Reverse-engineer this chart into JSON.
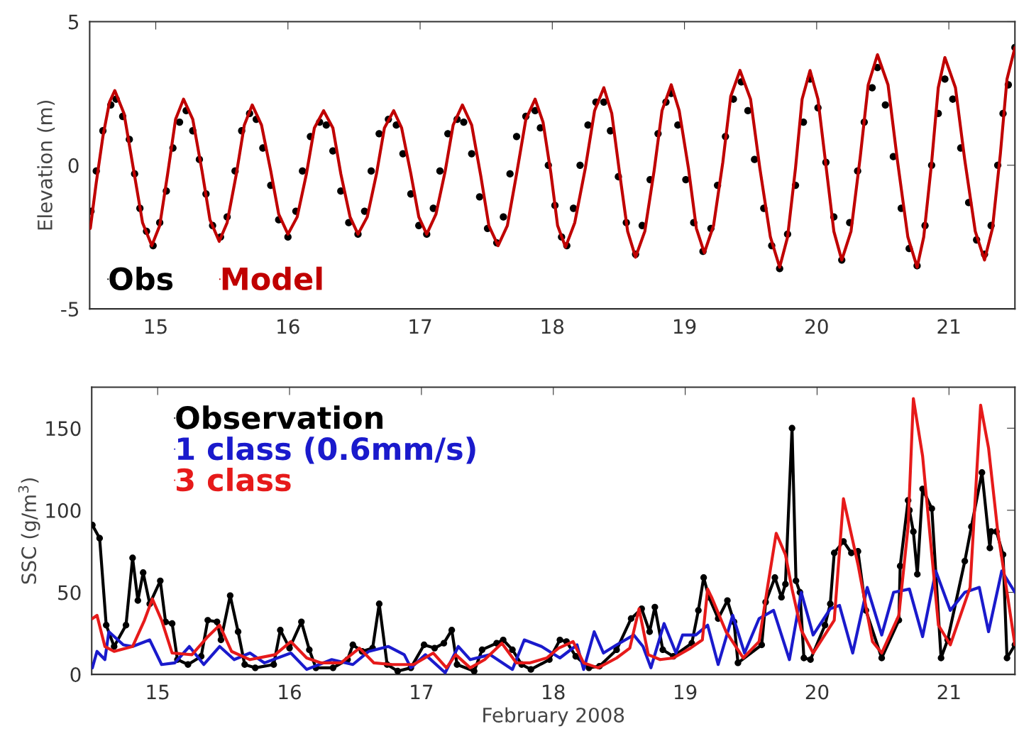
{
  "chart_data": [
    {
      "type": "line",
      "ylabel": "Elevation (m)",
      "xlim": [
        14.5,
        21.5
      ],
      "xticks": [
        15,
        16,
        17,
        18,
        19,
        20,
        21
      ],
      "ylim": [
        -5,
        5
      ],
      "yticks": [
        -5,
        0,
        5
      ],
      "grid": false,
      "legend": "bottom left",
      "series": [
        {
          "name": "Obs",
          "type": "scatter",
          "marker": "circle",
          "color": "#000000",
          "x": [
            14.51,
            14.55,
            14.6,
            14.66,
            14.7,
            14.75,
            14.8,
            14.84,
            14.88,
            14.93,
            14.98,
            15.03,
            15.08,
            15.13,
            15.18,
            15.23,
            15.28,
            15.33,
            15.38,
            15.43,
            15.49,
            15.54,
            15.6,
            15.65,
            15.71,
            15.76,
            15.81,
            15.87,
            15.93,
            16.0,
            16.06,
            16.11,
            16.17,
            16.24,
            16.29,
            16.34,
            16.4,
            16.46,
            16.53,
            16.58,
            16.63,
            16.69,
            16.76,
            16.82,
            16.87,
            16.93,
            16.99,
            17.05,
            17.1,
            17.15,
            17.21,
            17.28,
            17.33,
            17.39,
            17.45,
            17.51,
            17.58,
            17.63,
            17.68,
            17.73,
            17.8,
            17.87,
            17.91,
            17.97,
            18.02,
            18.07,
            18.11,
            18.16,
            18.21,
            18.27,
            18.33,
            18.39,
            18.44,
            18.5,
            18.56,
            18.63,
            18.68,
            18.74,
            18.8,
            18.86,
            18.9,
            18.95,
            19.01,
            19.07,
            19.14,
            19.2,
            19.25,
            19.31,
            19.37,
            19.43,
            19.48,
            19.53,
            19.6,
            19.66,
            19.72,
            19.78,
            19.84,
            19.9,
            19.95,
            20.01,
            20.07,
            20.13,
            20.19,
            20.25,
            20.31,
            20.36,
            20.42,
            20.46,
            20.52,
            20.58,
            20.64,
            20.7,
            20.76,
            20.82,
            20.87,
            20.92,
            20.97,
            21.03,
            21.09,
            21.15,
            21.21,
            21.27,
            21.32,
            21.37,
            21.41,
            21.45,
            21.5
          ],
          "values": [
            -1.6,
            -0.2,
            1.2,
            2.1,
            2.3,
            1.7,
            0.9,
            -0.3,
            -1.5,
            -2.3,
            -2.8,
            -2.0,
            -0.9,
            0.6,
            1.5,
            1.9,
            1.2,
            0.2,
            -1.0,
            -2.1,
            -2.5,
            -1.8,
            -0.2,
            1.2,
            1.8,
            1.6,
            0.6,
            -0.7,
            -1.9,
            -2.5,
            -1.6,
            -0.2,
            1.0,
            1.5,
            1.4,
            0.5,
            -0.9,
            -2.0,
            -2.4,
            -1.6,
            -0.2,
            1.1,
            1.6,
            1.4,
            0.4,
            -1.0,
            -2.1,
            -2.4,
            -1.5,
            -0.2,
            1.1,
            1.6,
            1.5,
            0.4,
            -1.1,
            -2.2,
            -2.7,
            -1.8,
            -0.3,
            1.0,
            1.7,
            1.9,
            1.3,
            0.0,
            -1.4,
            -2.5,
            -2.8,
            -1.5,
            0.0,
            1.4,
            2.2,
            2.2,
            1.2,
            -0.4,
            -2.0,
            -3.1,
            -2.1,
            -0.5,
            1.1,
            2.2,
            2.5,
            1.4,
            -0.5,
            -2.0,
            -3.0,
            -2.2,
            -0.7,
            1.0,
            2.3,
            2.9,
            1.9,
            0.2,
            -1.5,
            -2.8,
            -3.6,
            -2.4,
            -0.7,
            1.5,
            3.0,
            2.0,
            0.1,
            -1.8,
            -3.3,
            -2.0,
            -0.2,
            1.5,
            2.7,
            3.4,
            2.1,
            0.3,
            -1.5,
            -2.9,
            -3.5,
            -2.1,
            0.0,
            1.8,
            3.0,
            2.3,
            0.6,
            -1.3,
            -2.6,
            -3.1,
            -2.1,
            0.0,
            1.8,
            2.8,
            4.1
          ]
        },
        {
          "name": "Model",
          "color": "#c00000",
          "x": [
            14.505,
            14.55,
            14.6,
            14.65,
            14.69,
            14.76,
            14.83,
            14.9,
            14.97,
            15.03,
            15.09,
            15.15,
            15.21,
            15.28,
            15.35,
            15.41,
            15.48,
            15.54,
            15.61,
            15.67,
            15.73,
            15.8,
            15.87,
            15.93,
            16.0,
            16.07,
            16.14,
            16.2,
            16.27,
            16.34,
            16.4,
            16.47,
            16.53,
            16.6,
            16.67,
            16.73,
            16.8,
            16.86,
            16.93,
            16.99,
            17.05,
            17.12,
            17.19,
            17.25,
            17.32,
            17.39,
            17.46,
            17.52,
            17.59,
            17.66,
            17.73,
            17.8,
            17.87,
            17.93,
            17.99,
            18.04,
            18.1,
            18.17,
            18.25,
            18.32,
            18.39,
            18.45,
            18.51,
            18.57,
            18.63,
            18.7,
            18.77,
            18.83,
            18.9,
            18.96,
            19.03,
            19.09,
            19.15,
            19.22,
            19.29,
            19.35,
            19.42,
            19.5,
            19.57,
            19.65,
            19.72,
            19.78,
            19.84,
            19.89,
            19.95,
            20.01,
            20.07,
            20.13,
            20.19,
            20.26,
            20.33,
            20.39,
            20.46,
            20.54,
            20.61,
            20.69,
            20.76,
            20.81,
            20.87,
            20.92,
            20.97,
            21.05,
            21.12,
            21.2,
            21.27,
            21.33,
            21.39,
            21.44,
            21.5
          ],
          "values": [
            -2.2,
            -0.6,
            1.0,
            2.2,
            2.6,
            1.8,
            -0.1,
            -2.0,
            -2.8,
            -2.1,
            -0.3,
            1.6,
            2.3,
            1.6,
            -0.2,
            -1.9,
            -2.65,
            -2.0,
            -0.3,
            1.4,
            2.1,
            1.4,
            -0.2,
            -1.7,
            -2.4,
            -1.8,
            -0.3,
            1.3,
            1.9,
            1.3,
            -0.3,
            -1.8,
            -2.4,
            -1.8,
            -0.3,
            1.3,
            1.9,
            1.3,
            -0.3,
            -1.8,
            -2.4,
            -1.7,
            -0.2,
            1.4,
            2.1,
            1.4,
            -0.4,
            -2.1,
            -2.8,
            -2.1,
            -0.3,
            1.6,
            2.3,
            1.5,
            -0.3,
            -2.1,
            -2.85,
            -2.0,
            -0.1,
            1.9,
            2.7,
            1.8,
            -0.3,
            -2.3,
            -3.2,
            -2.3,
            -0.2,
            1.9,
            2.8,
            1.9,
            -0.1,
            -2.2,
            -3.05,
            -2.1,
            0.1,
            2.4,
            3.3,
            2.3,
            -0.1,
            -2.5,
            -3.55,
            -2.5,
            -0.1,
            2.3,
            3.3,
            2.3,
            0.0,
            -2.3,
            -3.3,
            -2.3,
            0.3,
            2.8,
            3.85,
            2.8,
            0.2,
            -2.5,
            -3.55,
            -2.5,
            0.1,
            2.7,
            3.75,
            2.7,
            0.2,
            -2.3,
            -3.3,
            -2.2,
            0.4,
            3.0,
            4.1
          ]
        }
      ]
    },
    {
      "type": "line",
      "ylabel": "SSC (g/m$^{3}$)",
      "xlabel": "February 2008",
      "xlim": [
        14.5,
        21.5
      ],
      "xticks": [
        15,
        16,
        17,
        18,
        19,
        20,
        21
      ],
      "ylim": [
        0,
        175
      ],
      "yticks": [
        0,
        50,
        100,
        150
      ],
      "grid": false,
      "legend": "top left",
      "series": [
        {
          "name": "Observation",
          "marker": "circle",
          "color": "#000000",
          "x": [
            14.505,
            14.56,
            14.61,
            14.67,
            14.76,
            14.81,
            14.85,
            14.89,
            14.94,
            15.02,
            15.06,
            15.11,
            15.15,
            15.23,
            15.33,
            15.38,
            15.45,
            15.48,
            15.55,
            15.61,
            15.66,
            15.74,
            15.88,
            15.93,
            16.0,
            16.09,
            16.15,
            16.2,
            16.33,
            16.44,
            16.48,
            16.55,
            16.63,
            16.68,
            16.74,
            16.82,
            16.92,
            17.02,
            17.1,
            17.17,
            17.23,
            17.27,
            17.4,
            17.46,
            17.57,
            17.62,
            17.69,
            17.76,
            17.83,
            17.97,
            18.05,
            18.1,
            18.17,
            18.27,
            18.35,
            18.48,
            18.59,
            18.67,
            18.73,
            18.77,
            18.83,
            18.91,
            19.05,
            19.1,
            19.14,
            19.18,
            19.25,
            19.32,
            19.37,
            19.4,
            19.58,
            19.61,
            19.68,
            19.73,
            19.76,
            19.81,
            19.84,
            19.87,
            19.9,
            19.95,
            20.06,
            20.1,
            20.13,
            20.2,
            20.26,
            20.31,
            20.37,
            20.49,
            20.62,
            20.63,
            20.69,
            20.7,
            20.73,
            20.76,
            20.8,
            20.87,
            20.94,
            20.99,
            21.12,
            21.17,
            21.25,
            21.31,
            21.32,
            21.36,
            21.41,
            21.44,
            21.5
          ],
          "values": [
            91,
            83,
            30,
            17,
            30,
            71,
            45,
            62,
            43,
            57,
            32,
            31,
            9,
            6,
            11,
            33,
            32,
            21,
            48,
            26,
            6,
            4,
            6,
            27,
            16,
            32,
            15,
            4,
            4,
            9,
            18,
            14,
            16,
            43,
            6,
            2,
            4,
            18,
            16,
            19,
            27,
            6,
            2,
            15,
            19,
            21,
            15,
            6,
            3,
            9,
            21,
            20,
            11,
            4,
            5,
            15,
            34,
            40,
            26,
            41,
            15,
            11,
            19,
            39,
            59,
            47,
            34,
            45,
            32,
            7,
            18,
            44,
            59,
            47,
            55,
            150,
            57,
            50,
            10,
            9,
            30,
            43,
            74,
            81,
            74,
            75,
            39,
            10,
            33,
            66,
            106,
            100,
            87,
            61,
            113,
            101,
            10,
            21,
            69,
            90,
            123,
            77,
            87,
            87,
            73,
            10,
            18
          ]
        },
        {
          "name": "1 class (0.6mm/s)",
          "color": "#1a1acc",
          "x": [
            14.505,
            14.54,
            14.6,
            14.63,
            14.74,
            14.81,
            14.94,
            15.03,
            15.13,
            15.24,
            15.35,
            15.47,
            15.58,
            15.7,
            15.81,
            16.01,
            16.13,
            16.32,
            16.48,
            16.6,
            16.75,
            16.87,
            16.92,
            17.03,
            17.18,
            17.28,
            17.37,
            17.52,
            17.69,
            17.78,
            17.91,
            18.05,
            18.18,
            18.23,
            18.31,
            18.38,
            18.48,
            18.61,
            18.68,
            18.74,
            18.84,
            18.93,
            18.98,
            19.08,
            19.17,
            19.25,
            19.36,
            19.45,
            19.56,
            19.67,
            19.79,
            19.88,
            19.97,
            20.1,
            20.17,
            20.27,
            20.38,
            20.49,
            20.58,
            20.7,
            20.8,
            20.9,
            21.01,
            21.12,
            21.23,
            21.3,
            21.4,
            21.5
          ],
          "values": [
            4,
            14,
            9,
            26,
            18,
            17,
            21,
            6,
            7,
            17,
            6,
            17,
            9,
            13,
            7,
            13,
            3,
            9,
            6,
            14,
            17,
            12,
            4,
            12,
            1,
            17,
            9,
            12,
            3,
            21,
            17,
            10,
            18,
            3,
            26,
            13,
            18,
            24,
            17,
            4,
            31,
            13,
            24,
            24,
            30,
            6,
            36,
            13,
            34,
            39,
            9,
            50,
            24,
            40,
            42,
            13,
            53,
            24,
            50,
            52,
            23,
            63,
            39,
            50,
            53,
            26,
            63,
            50
          ]
        },
        {
          "name": "3 class",
          "color": "#e61a1a",
          "x": [
            14.505,
            14.54,
            14.6,
            14.67,
            14.81,
            14.9,
            14.96,
            15.03,
            15.11,
            15.26,
            15.38,
            15.47,
            15.56,
            15.7,
            15.89,
            16.01,
            16.13,
            16.24,
            16.39,
            16.53,
            16.64,
            16.78,
            16.94,
            17.09,
            17.19,
            17.26,
            17.37,
            17.48,
            17.61,
            17.72,
            17.82,
            17.95,
            18.04,
            18.15,
            18.23,
            18.34,
            18.48,
            18.58,
            18.65,
            18.72,
            18.81,
            18.91,
            19.04,
            19.13,
            19.17,
            19.2,
            19.31,
            19.44,
            19.56,
            19.63,
            19.69,
            19.76,
            19.81,
            19.88,
            19.97,
            20.13,
            20.2,
            20.31,
            20.42,
            20.49,
            20.62,
            20.69,
            20.73,
            20.8,
            20.85,
            20.92,
            21.01,
            21.16,
            21.24,
            21.3,
            21.37,
            21.44,
            21.5
          ],
          "values": [
            34,
            36,
            17,
            14,
            17,
            33,
            46,
            33,
            13,
            12,
            23,
            30,
            14,
            9,
            12,
            20,
            10,
            7,
            7,
            16,
            7,
            6,
            6,
            13,
            4,
            12,
            4,
            9,
            19,
            7,
            7,
            10,
            16,
            20,
            7,
            4,
            10,
            16,
            40,
            12,
            9,
            10,
            16,
            21,
            52,
            47,
            26,
            10,
            20,
            56,
            86,
            73,
            52,
            27,
            13,
            33,
            107,
            67,
            20,
            13,
            36,
            90,
            168,
            133,
            90,
            30,
            18,
            53,
            164,
            138,
            87,
            50,
            18
          ]
        }
      ]
    }
  ]
}
